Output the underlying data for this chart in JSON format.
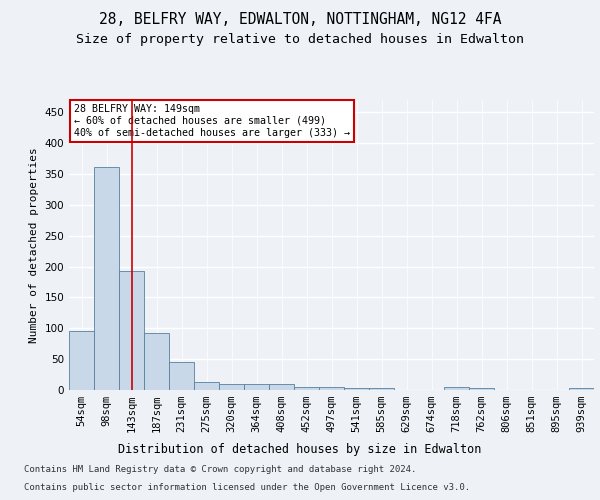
{
  "title1": "28, BELFRY WAY, EDWALTON, NOTTINGHAM, NG12 4FA",
  "title2": "Size of property relative to detached houses in Edwalton",
  "xlabel": "Distribution of detached houses by size in Edwalton",
  "ylabel": "Number of detached properties",
  "footer1": "Contains HM Land Registry data © Crown copyright and database right 2024.",
  "footer2": "Contains public sector information licensed under the Open Government Licence v3.0.",
  "bar_labels": [
    "54sqm",
    "98sqm",
    "143sqm",
    "187sqm",
    "231sqm",
    "275sqm",
    "320sqm",
    "364sqm",
    "408sqm",
    "452sqm",
    "497sqm",
    "541sqm",
    "585sqm",
    "629sqm",
    "674sqm",
    "718sqm",
    "762sqm",
    "806sqm",
    "851sqm",
    "895sqm",
    "939sqm"
  ],
  "bar_values": [
    96,
    362,
    193,
    93,
    45,
    13,
    9,
    9,
    10,
    5,
    5,
    3,
    3,
    0,
    0,
    5,
    4,
    0,
    0,
    0,
    3
  ],
  "bar_color": "#c8d8e8",
  "bar_edge_color": "#5580a0",
  "vline_x_index": 2,
  "vline_color": "#cc0000",
  "annotation_text": "28 BELFRY WAY: 149sqm\n← 60% of detached houses are smaller (499)\n40% of semi-detached houses are larger (333) →",
  "annotation_box_color": "#ffffff",
  "annotation_border_color": "#cc0000",
  "ylim": [
    0,
    470
  ],
  "yticks": [
    0,
    50,
    100,
    150,
    200,
    250,
    300,
    350,
    400,
    450
  ],
  "background_color": "#eef2f7",
  "plot_bg_color": "#eef2f7",
  "grid_color": "#ffffff",
  "title1_fontsize": 10.5,
  "title2_fontsize": 9.5,
  "xlabel_fontsize": 8.5,
  "ylabel_fontsize": 8,
  "tick_fontsize": 7.5,
  "footer_fontsize": 6.5
}
